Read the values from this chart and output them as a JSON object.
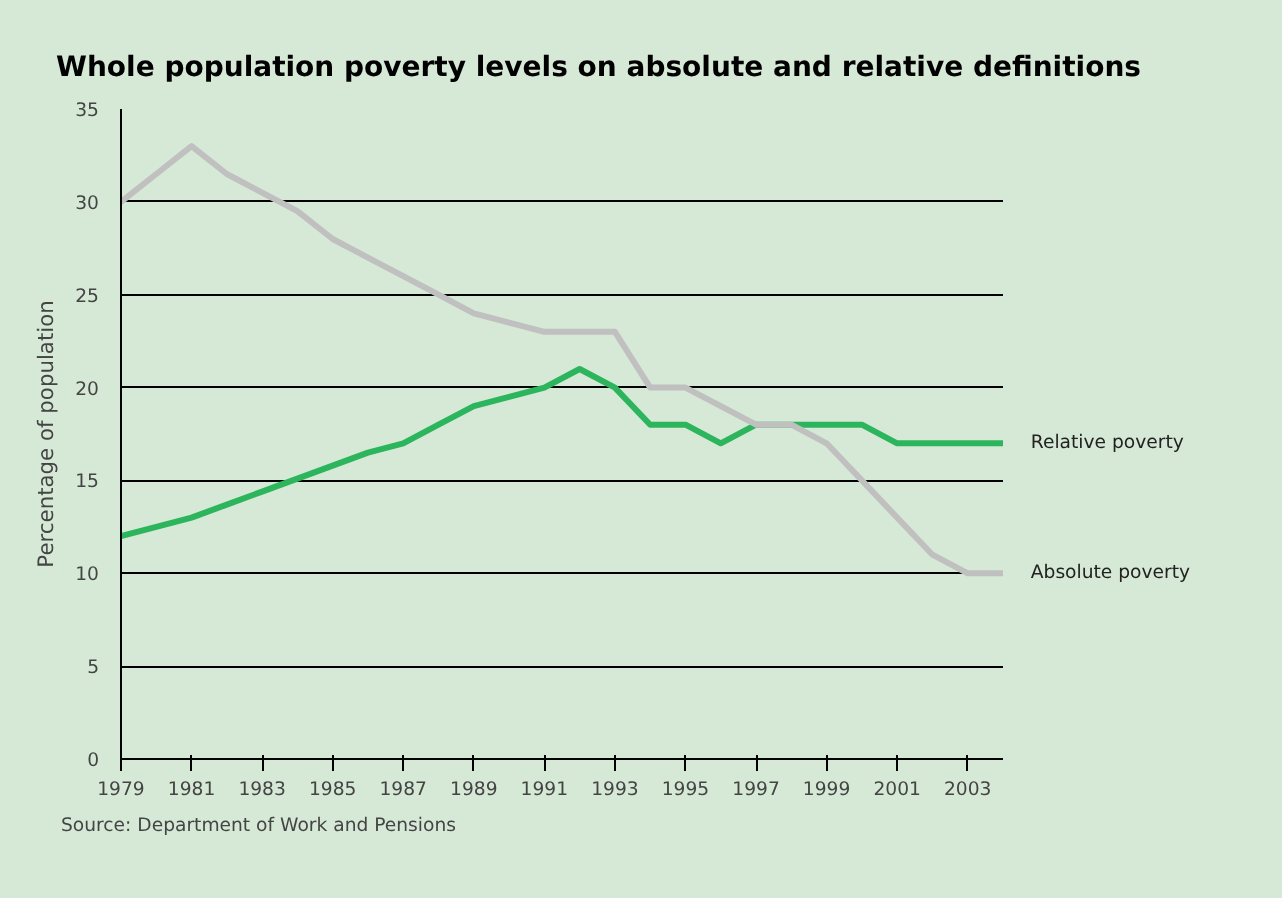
{
  "chart_data": {
    "type": "line",
    "title": "Whole population poverty levels on absolute and relative definitions",
    "ylabel": "Percentage of population",
    "annotations": [
      "Source: Department of Work and Pensions"
    ],
    "x": [
      1979,
      1980,
      1981,
      1982,
      1983,
      1984,
      1985,
      1986,
      1987,
      1988,
      1989,
      1990,
      1991,
      1992,
      1993,
      1994,
      1995,
      1996,
      1997,
      1998,
      1999,
      2000,
      2001,
      2002,
      2003,
      2004
    ],
    "series": [
      {
        "name": "Relative poverty",
        "color": "#2db55d",
        "values": [
          12,
          12.5,
          13,
          13.7,
          14.4,
          15.1,
          15.8,
          16.5,
          17,
          18,
          19,
          19.5,
          20,
          21,
          20,
          18,
          18,
          17,
          18,
          18,
          18,
          18,
          17,
          17,
          17,
          17
        ]
      },
      {
        "name": "Absolute poverty",
        "color": "#c0c0c0",
        "values": [
          30,
          31.5,
          33,
          31.5,
          30.5,
          29.5,
          28,
          27,
          26,
          25,
          24,
          23.5,
          23,
          23,
          23,
          20,
          20,
          19,
          18,
          18,
          17,
          15,
          13,
          11,
          10,
          10
        ]
      }
    ],
    "xlim": [
      1979,
      2004
    ],
    "xticks": [
      1979,
      1981,
      1983,
      1985,
      1987,
      1989,
      1991,
      1993,
      1995,
      1997,
      1999,
      2001,
      2003
    ],
    "ylim": [
      0,
      35
    ],
    "yticks": [
      0,
      5,
      10,
      15,
      20,
      25,
      30,
      35
    ],
    "grid": "y",
    "line_style": "solid",
    "marker": "none"
  }
}
